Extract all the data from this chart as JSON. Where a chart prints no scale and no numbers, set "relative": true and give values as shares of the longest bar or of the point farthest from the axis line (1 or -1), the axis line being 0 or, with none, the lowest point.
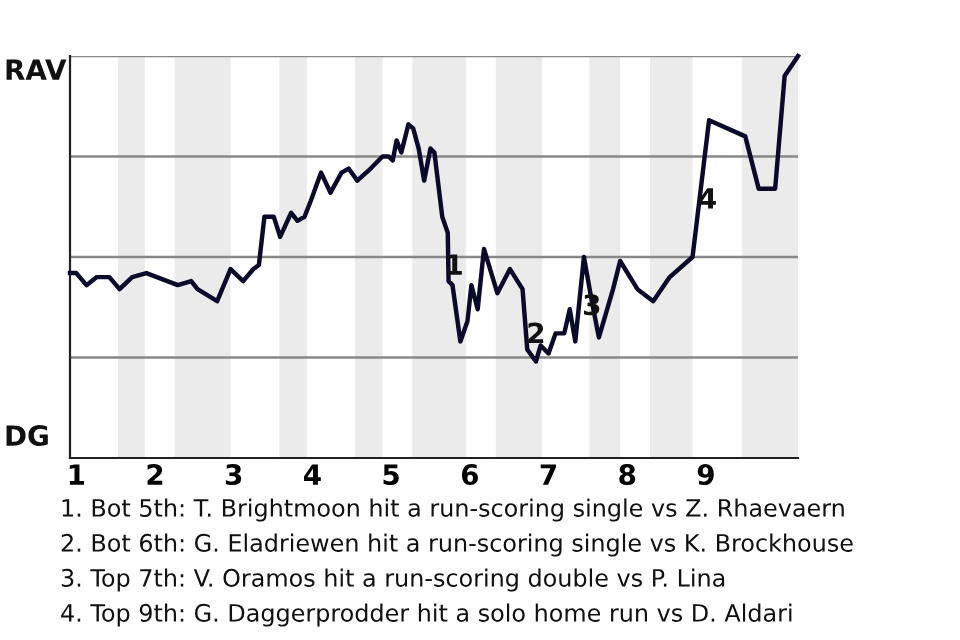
{
  "chart_data": {
    "type": "line",
    "relative": true,
    "x": [
      0.92,
      1.0,
      1.13,
      1.26,
      1.42,
      1.55,
      1.71,
      1.89,
      2.29,
      2.46,
      2.54,
      2.79,
      2.96,
      3.12,
      3.25,
      3.32,
      3.39,
      3.51,
      3.59,
      3.73,
      3.81,
      3.9,
      3.98,
      4.11,
      4.23,
      4.37,
      4.46,
      4.57,
      4.74,
      4.89,
      4.97,
      5.02,
      5.07,
      5.13,
      5.22,
      5.28,
      5.35,
      5.42,
      5.5,
      5.55,
      5.65,
      5.72,
      5.73,
      5.78,
      5.88,
      5.97,
      6.02,
      6.1,
      6.18,
      6.35,
      6.51,
      6.67,
      6.73,
      6.84,
      6.9,
      7.0,
      7.09,
      7.2,
      7.27,
      7.34,
      7.45,
      7.55,
      7.64,
      7.73,
      7.82,
      7.91,
      8.13,
      8.33,
      8.54,
      8.83,
      9.04,
      9.5,
      9.67,
      9.88,
      10.0,
      10.17
    ],
    "series": [
      {
        "color": "#0a0a2a",
        "values": [
          0.46,
          0.46,
          0.43,
          0.45,
          0.45,
          0.42,
          0.45,
          0.46,
          0.43,
          0.44,
          0.42,
          0.39,
          0.47,
          0.44,
          0.47,
          0.48,
          0.6,
          0.6,
          0.55,
          0.61,
          0.59,
          0.6,
          0.64,
          0.71,
          0.66,
          0.71,
          0.72,
          0.69,
          0.72,
          0.75,
          0.75,
          0.74,
          0.79,
          0.76,
          0.83,
          0.82,
          0.77,
          0.69,
          0.77,
          0.76,
          0.6,
          0.56,
          0.44,
          0.43,
          0.29,
          0.34,
          0.43,
          0.37,
          0.52,
          0.41,
          0.47,
          0.42,
          0.27,
          0.24,
          0.28,
          0.26,
          0.31,
          0.31,
          0.37,
          0.29,
          0.5,
          0.39,
          0.3,
          0.36,
          0.42,
          0.49,
          0.42,
          0.39,
          0.45,
          0.5,
          0.84,
          0.8,
          0.67,
          0.67,
          0.95,
          1.0
        ]
      }
    ],
    "xlim": [
      0.92,
      10.17
    ],
    "xticks": [
      1,
      2,
      3,
      4,
      5,
      6,
      7,
      8,
      9
    ],
    "marker": "none",
    "line_style": "solid",
    "ref_lines": [
      {
        "axis": "y",
        "value": 0.25,
        "color": "#888888"
      },
      {
        "axis": "y",
        "value": 0.5,
        "color": "#888888"
      },
      {
        "axis": "y",
        "value": 0.75,
        "color": "#888888"
      },
      {
        "axis": "y",
        "value": 1,
        "color": "#888888"
      }
    ],
    "bands": [
      {
        "axis": "x",
        "from": 1.53,
        "to": 1.87,
        "color": "#ebebeb"
      },
      {
        "axis": "x",
        "from": 2.25,
        "to": 2.96,
        "color": "#ebebeb"
      },
      {
        "axis": "x",
        "from": 3.58,
        "to": 3.93,
        "color": "#ebebeb"
      },
      {
        "axis": "x",
        "from": 4.54,
        "to": 4.89,
        "color": "#ebebeb"
      },
      {
        "axis": "x",
        "from": 5.27,
        "to": 5.95,
        "color": "#ebebeb"
      },
      {
        "axis": "x",
        "from": 6.33,
        "to": 6.92,
        "color": "#ebebeb"
      },
      {
        "axis": "x",
        "from": 7.52,
        "to": 7.91,
        "color": "#ebebeb"
      },
      {
        "axis": "x",
        "from": 8.29,
        "to": 8.83,
        "color": "#ebebeb"
      },
      {
        "axis": "x",
        "from": 9.46,
        "to": 10.17,
        "color": "#ebebeb"
      }
    ],
    "annotations": [
      "RAV",
      "DG",
      {
        "text": "1",
        "x": 5.8,
        "y": 0.475
      },
      {
        "text": "2",
        "x": 6.84,
        "y": 0.305
      },
      {
        "text": "3",
        "x": 7.55,
        "y": 0.375
      },
      {
        "text": "4",
        "x": 9.02,
        "y": 0.64
      },
      "1. Bot 5th: T. Brightmoon hit a run-scoring single vs Z. Rhaevaern",
      "2. Bot 6th: G. Eladriewen hit a run-scoring single vs K. Brockhouse",
      "3. Top 7th: V. Oramos hit a run-scoring double vs P. Lina",
      "4. Top 9th: G. Daggerprodder hit a solo home run vs D. Aldari"
    ]
  }
}
